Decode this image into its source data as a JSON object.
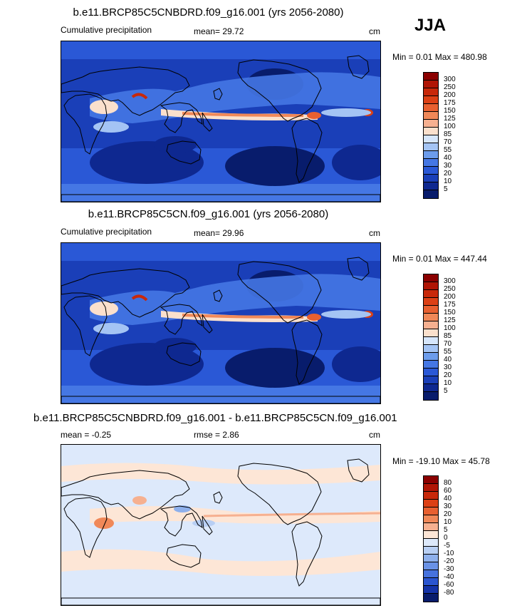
{
  "season": "JJA",
  "panels": [
    {
      "title": "b.e11.BRCP85C5CNBDRD.f09_g16.001 (yrs 2056-2080)",
      "left_label": "Cumulative precipitation",
      "mean_label": "mean=  29.72",
      "units": "cm",
      "minmax": "Min =  0.01 Max = 480.98",
      "levels": [
        "300",
        "250",
        "200",
        "175",
        "150",
        "125",
        "100",
        "85",
        "70",
        "55",
        "40",
        "30",
        "20",
        "10",
        "5"
      ]
    },
    {
      "title": "b.e11.BRCP85C5CN.f09_g16.001 (yrs 2056-2080)",
      "left_label": "Cumulative precipitation",
      "mean_label": "mean=  29.96",
      "units": "cm",
      "minmax": "Min =  0.01 Max = 447.44",
      "levels": [
        "300",
        "250",
        "200",
        "175",
        "150",
        "125",
        "100",
        "85",
        "70",
        "55",
        "40",
        "30",
        "20",
        "10",
        "5"
      ]
    },
    {
      "title": "b.e11.BRCP85C5CNBDRD.f09_g16.001 - b.e11.BRCP85C5CN.f09_g16.001",
      "left_label": "mean =  -0.25",
      "mean_label": "rmse =  2.86",
      "units": "cm",
      "minmax": "Min = -19.10 Max =  45.78",
      "levels": [
        "80",
        "60",
        "40",
        "30",
        "20",
        "10",
        "5",
        "0",
        "-5",
        "-10",
        "-20",
        "-30",
        "-40",
        "-60",
        "-80"
      ]
    }
  ],
  "colors": {
    "precip_scale": [
      "#8b0000",
      "#b01505",
      "#c8280a",
      "#dc4015",
      "#e86030",
      "#f08858",
      "#f6b090",
      "#fbe0cc",
      "#d6e6fb",
      "#a4c4f4",
      "#6c9cec",
      "#4577e4",
      "#2a58d6",
      "#1a3fb8",
      "#0e2890",
      "#081c6c"
    ],
    "diff_scale": [
      "#8b0000",
      "#b01505",
      "#c8280a",
      "#dc4015",
      "#e86030",
      "#f08858",
      "#f6b090",
      "#fde6d6",
      "#dde9fb",
      "#b8cff4",
      "#8eb0ec",
      "#6a92e6",
      "#4672de",
      "#2a55d0",
      "#1433a8",
      "#081c6c"
    ]
  }
}
